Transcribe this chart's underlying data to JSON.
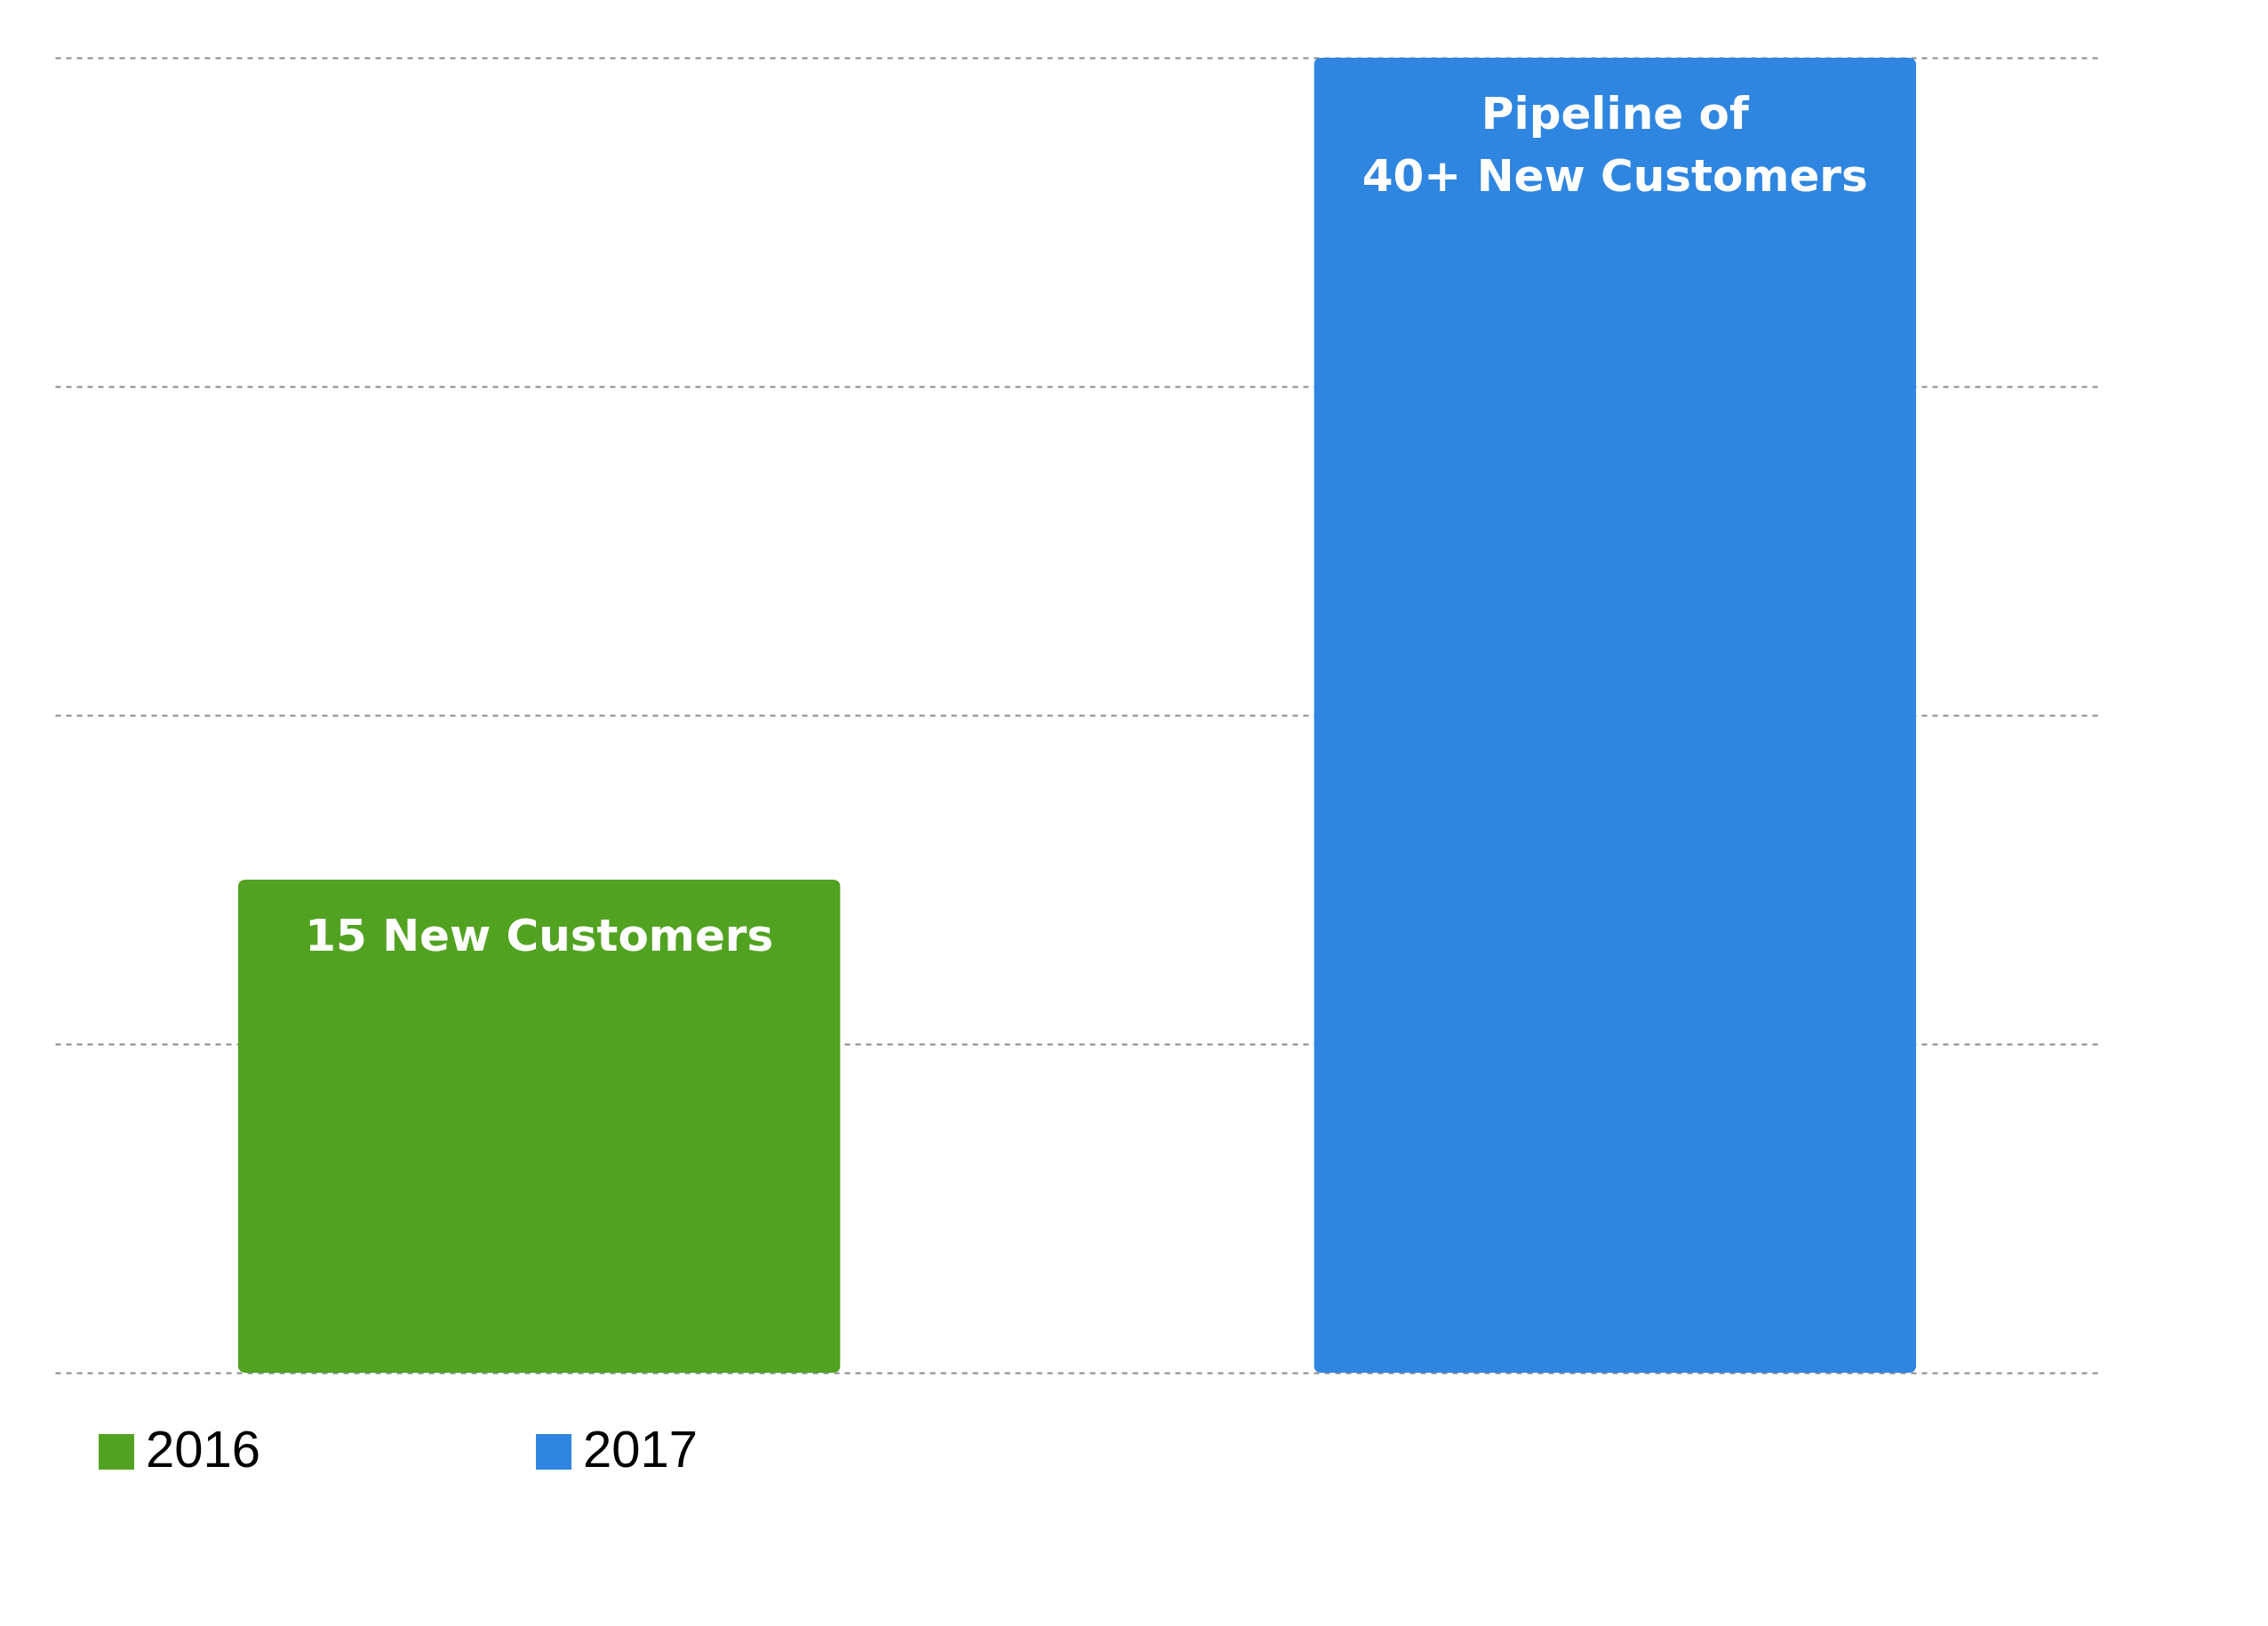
{
  "chart_data": {
    "type": "bar",
    "categories": [
      null,
      null
    ],
    "series": [
      {
        "name": "2016",
        "color": "#52a222",
        "values": [
          15,
          null
        ],
        "value_labels": [
          "15 New Customers",
          null
        ]
      },
      {
        "name": "2017",
        "color": "#2f86e0",
        "values": [
          null,
          40
        ],
        "value_labels": [
          null,
          "Pipeline of\n40+ New Customers"
        ]
      }
    ],
    "ylim": [
      0,
      40
    ],
    "yticks": [
      {
        "value": 0,
        "label": null
      },
      {
        "value": 10,
        "label": null
      },
      {
        "value": 20,
        "label": null
      },
      {
        "value": 30,
        "label": null
      },
      {
        "value": 40,
        "label": null
      }
    ],
    "grid": "y",
    "legend": "bottom",
    "stacked": true
  }
}
